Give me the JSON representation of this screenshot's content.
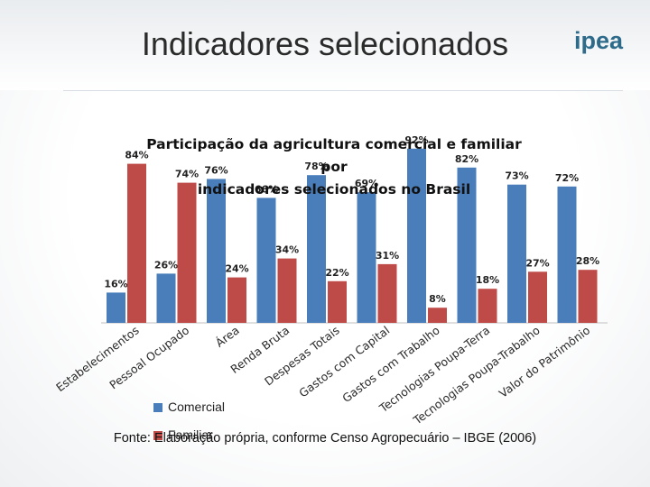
{
  "slide": {
    "title": "Indicadores selecionados",
    "logo_text": "ipea",
    "source": "Fonte: Elaboração própria, conforme Censo Agropecuário – IBGE (2006)"
  },
  "legend": {
    "comercial": "Comercial",
    "familiar": "Familiar"
  },
  "colors": {
    "comercial": "#4a7ebb",
    "familiar": "#be4b48"
  },
  "chart_data": {
    "type": "bar",
    "title_line1": "Participação da agricultura comercial e familiar por",
    "title_line2": "indicadores selecionados no Brasil",
    "categories": [
      "Estabelecimentos",
      "Pessoal Ocupado",
      "Área",
      "Renda Bruta",
      "Despesas Totais",
      "Gastos com Capital",
      "Gastos com Trabalho",
      "Tecnologias Poupa-Terra",
      "Tecnologias Poupa-Trabalho",
      "Valor do Patrimônio"
    ],
    "series": [
      {
        "name": "Comercial",
        "values": [
          16,
          26,
          76,
          66,
          78,
          69,
          92,
          82,
          73,
          72
        ],
        "labels": [
          "16%",
          "26%",
          "76%",
          "66%",
          "78%",
          "69%",
          "92%",
          "82%",
          "73%",
          "72%"
        ]
      },
      {
        "name": "Familiar",
        "values": [
          84,
          74,
          24,
          34,
          22,
          31,
          8,
          18,
          27,
          28
        ],
        "labels": [
          "84%",
          "74%",
          "24%",
          "34%",
          "22%",
          "31%",
          "8%",
          "18%",
          "27%",
          "28%"
        ]
      }
    ],
    "ylim": [
      0,
      100
    ],
    "grid": false,
    "legend_position": "bottom-left"
  }
}
